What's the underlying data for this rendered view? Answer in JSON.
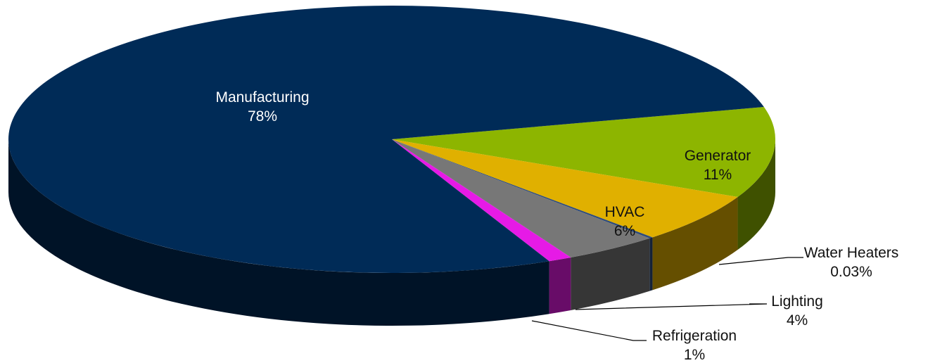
{
  "chart_data": {
    "type": "pie",
    "style": "3d",
    "title": "",
    "slices": [
      {
        "label": "Manufacturing",
        "value_label": "78%",
        "value": 78,
        "color": "#002B57",
        "label_mode": "inside-white"
      },
      {
        "label": "Generator",
        "value_label": "11%",
        "value": 11,
        "color": "#8DB500",
        "label_mode": "inside-dark"
      },
      {
        "label": "HVAC",
        "value_label": "6%",
        "value": 6,
        "color": "#E0B000",
        "label_mode": "inside-dark"
      },
      {
        "label": "Water Heaters",
        "value_label": "0.03%",
        "value": 0.03,
        "color": "#2E4B7A",
        "label_mode": "outside"
      },
      {
        "label": "Lighting",
        "value_label": "4%",
        "value": 4,
        "color": "#777777",
        "label_mode": "outside"
      },
      {
        "label": "Refrigeration",
        "value_label": "1%",
        "value": 1,
        "color": "#E61AE6",
        "label_mode": "outside"
      }
    ]
  }
}
